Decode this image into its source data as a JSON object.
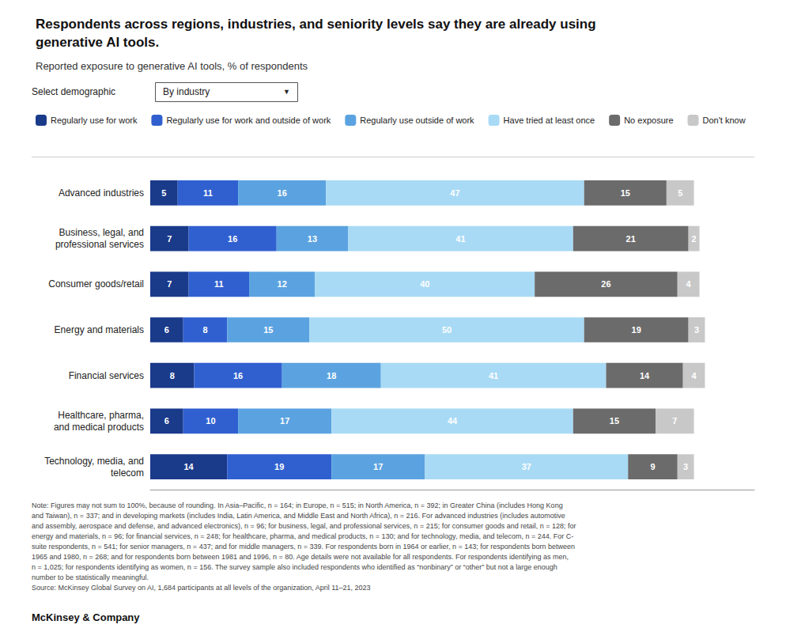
{
  "chart_data": {
    "type": "bar",
    "orientation": "horizontal",
    "stacked": true,
    "data_labels": true,
    "grid": false,
    "legend": "top",
    "tick_labels": "y",
    "title": "Respondents across regions, industries, and seniority levels say they are already using\ngenerative AI tools.",
    "subtitle": "Reported exposure to generative AI tools, % of respondents",
    "annotations": [
      "Select demographic",
      "By industry",
      "▼",
      "Note: Figures may not sum to 100%, because of rounding. In Asia–Pacific, n = 164; in Europe, n = 515; in North America, n = 392; in Greater China (includes Hong Kong\nand Taiwan), n = 337; and in developing markets (includes India, Latin America, and Middle East and North Africa), n = 216. For advanced industries (includes automotive\nand assembly, aerospace and defense, and advanced electronics), n = 96; for business, legal, and professional services, n = 215; for consumer goods and retail, n = 128; for\nenergy and materials, n = 96; for financial services, n = 248; for healthcare, pharma, and medical products, n = 130; and for technology, media, and telecom, n = 244. For C-\nsuite respondents, n = 541; for senior managers, n = 437; and for middle managers, n = 339. For respondents born in 1964 or earlier, n = 143; for respondents born between\n1965 and 1980, n = 268; and for respondents born between 1981 and 1996, n = 80. Age details were not available for all respondents. For respondents identifying as men,\nn = 1,025; for respondents identifying as women, n = 156. The survey sample also included respondents who identified as “nonbinary” or “other” but not a large enough\nnumber to be statistically meaningful.\nSource: McKinsey Global Survey on AI, 1,684 participants at all levels of the organization, April 11–21, 2023",
      "McKinsey & Company"
    ],
    "categories": [
      "Advanced industries",
      "Business, legal, and\nprofessional services",
      "Consumer goods/retail",
      "Energy and materials",
      "Financial services",
      "Healthcare, pharma,\nand medical products",
      "Technology, media, and\ntelecom"
    ],
    "xlim": [
      0,
      110
    ],
    "series": [
      {
        "name": "Regularly use for work",
        "color": "#1a3a8a",
        "values": [
          5,
          7,
          7,
          6,
          8,
          6,
          14
        ]
      },
      {
        "name": "Regularly use for work and outside of work",
        "color": "#3060d0",
        "values": [
          11,
          16,
          11,
          8,
          16,
          10,
          19
        ]
      },
      {
        "name": "Regularly use outside of work",
        "color": "#5ba3e0",
        "values": [
          16,
          13,
          12,
          15,
          18,
          17,
          17
        ]
      },
      {
        "name": "Have tried at least once",
        "color": "#a8daf5",
        "values": [
          47,
          41,
          40,
          50,
          41,
          44,
          37
        ]
      },
      {
        "name": "No exposure",
        "color": "#6b6b6b",
        "values": [
          15,
          21,
          26,
          19,
          14,
          15,
          9
        ]
      },
      {
        "name": "Don't know",
        "color": "#c8c8c8",
        "values": [
          5,
          2,
          4,
          3,
          4,
          7,
          3
        ]
      }
    ]
  }
}
